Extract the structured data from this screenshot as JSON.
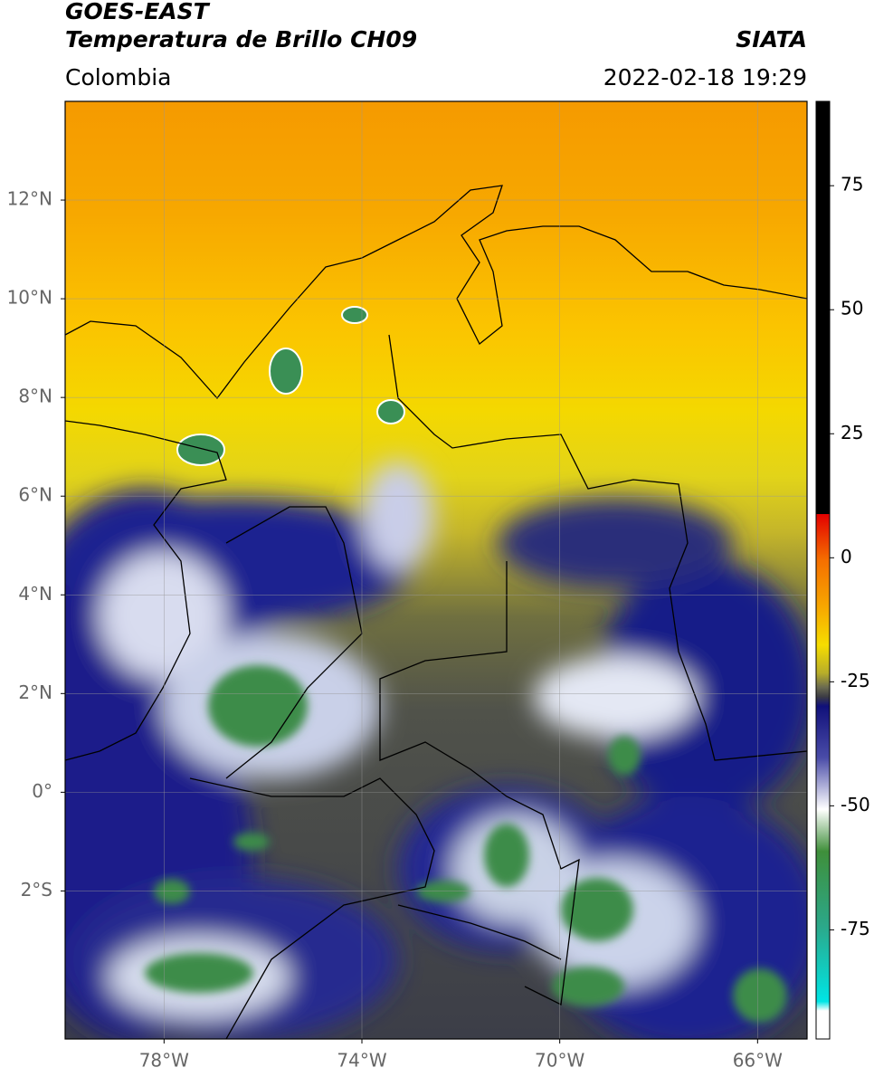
{
  "header": {
    "line1": "GOES-EAST",
    "line2": "Temperatura de Brillo CH09",
    "source": "SIATA",
    "region": "Colombia",
    "datetime": "2022-02-18 19:29"
  },
  "map": {
    "xlim": [
      -80,
      -65
    ],
    "ylim": [
      -5,
      14
    ],
    "grid": true,
    "xticks": [
      {
        "value": -78,
        "label": "78°W"
      },
      {
        "value": -74,
        "label": "74°W"
      },
      {
        "value": -70,
        "label": "70°W"
      },
      {
        "value": -66,
        "label": "66°W"
      }
    ],
    "yticks": [
      {
        "value": 12,
        "label": "12°N"
      },
      {
        "value": 10,
        "label": "10°N"
      },
      {
        "value": 8,
        "label": "8°N"
      },
      {
        "value": 6,
        "label": "6°N"
      },
      {
        "value": 4,
        "label": "4°N"
      },
      {
        "value": 2,
        "label": "2°N"
      },
      {
        "value": 0,
        "label": "0°"
      },
      {
        "value": -2,
        "label": "2°S"
      }
    ]
  },
  "colorbar": {
    "lim": [
      -97,
      92
    ],
    "ticks": [
      75,
      50,
      25,
      0,
      -25,
      -50,
      -75
    ]
  }
}
